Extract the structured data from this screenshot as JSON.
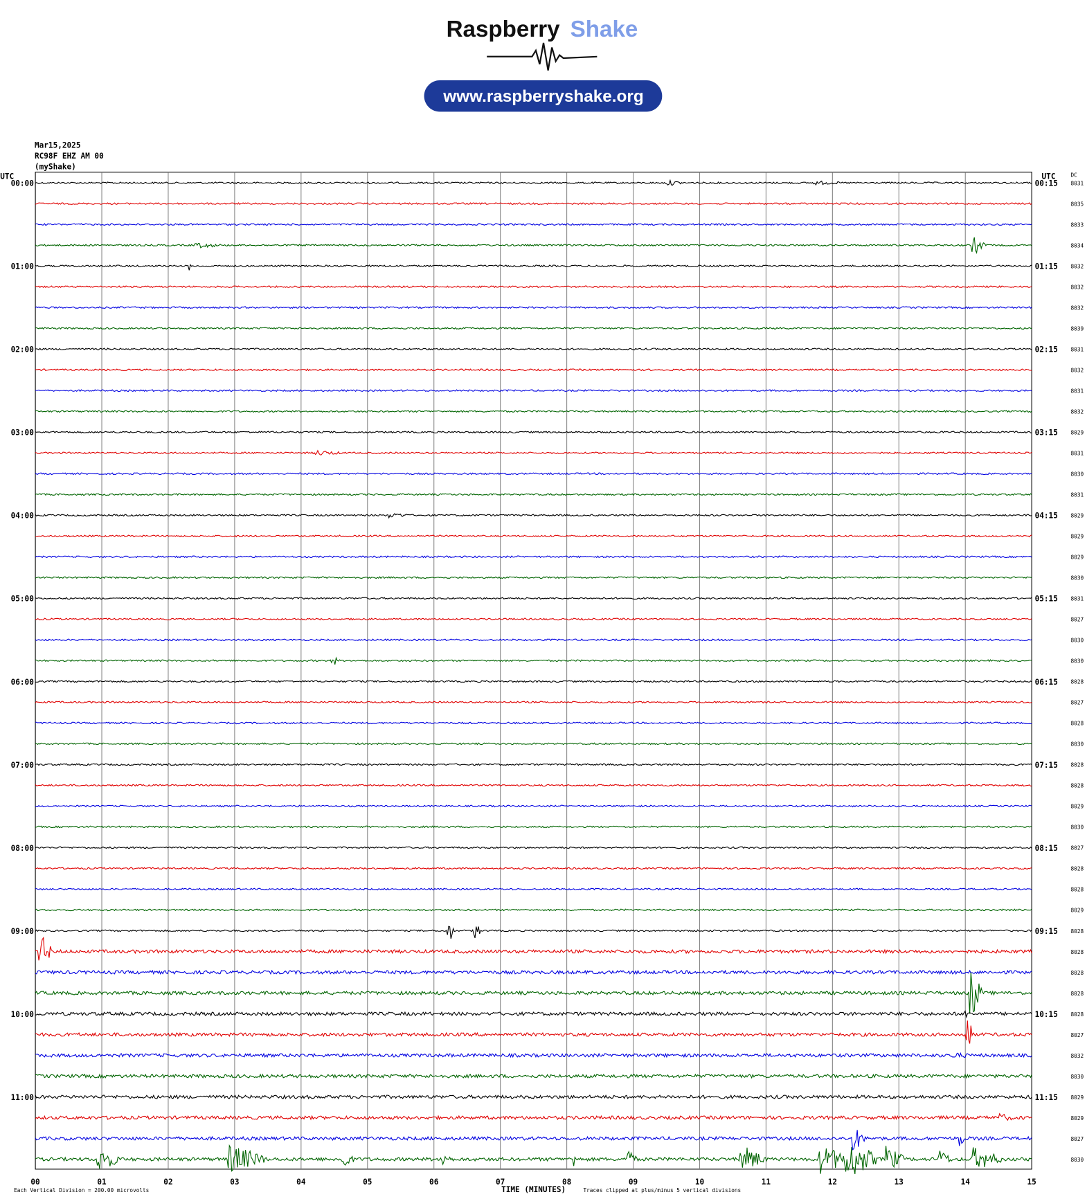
{
  "header": {
    "title_left": "Raspberry",
    "title_right": "Shake",
    "url": "www.raspberryshake.org"
  },
  "info": {
    "lines": [
      "Mar15,2025",
      "RC98F EHZ AM 00",
      "(myShake)"
    ]
  },
  "plot": {
    "utc_left": "UTC",
    "utc_right": "UTC",
    "dc_label": "DC",
    "left_labels": [
      "00:00",
      "01:00",
      "02:00",
      "03:00",
      "04:00",
      "05:00",
      "06:00",
      "07:00",
      "08:00",
      "09:00",
      "10:00",
      "11:00"
    ],
    "right_labels": [
      "00:15",
      "01:15",
      "02:15",
      "03:15",
      "04:15",
      "05:15",
      "06:15",
      "07:15",
      "08:15",
      "09:15",
      "10:15",
      "11:15"
    ],
    "dc_values": [
      8031,
      8035,
      8033,
      8034,
      8032,
      8032,
      8032,
      8039,
      8031,
      8032,
      8031,
      8032,
      8029,
      8031,
      8030,
      8031,
      8029,
      8029,
      8029,
      8030,
      8031,
      8027,
      8030,
      8030,
      8028,
      8027,
      8028,
      8030,
      8028,
      8028,
      8029,
      8030,
      8027,
      8028,
      8028,
      8029,
      8028,
      8028,
      8028,
      8028,
      8028,
      8027,
      8032,
      8030,
      8029,
      8029,
      8027,
      8030
    ],
    "x_ticks": [
      "00",
      "01",
      "02",
      "03",
      "04",
      "05",
      "06",
      "07",
      "08",
      "09",
      "10",
      "11",
      "12",
      "13",
      "14",
      "15"
    ],
    "x_label": "TIME (MINUTES)"
  },
  "footer": {
    "scale": "Each Vertical Division =  200.00 microvolts",
    "clip": "Traces clipped at plus/minus 5 vertical divisions"
  }
}
